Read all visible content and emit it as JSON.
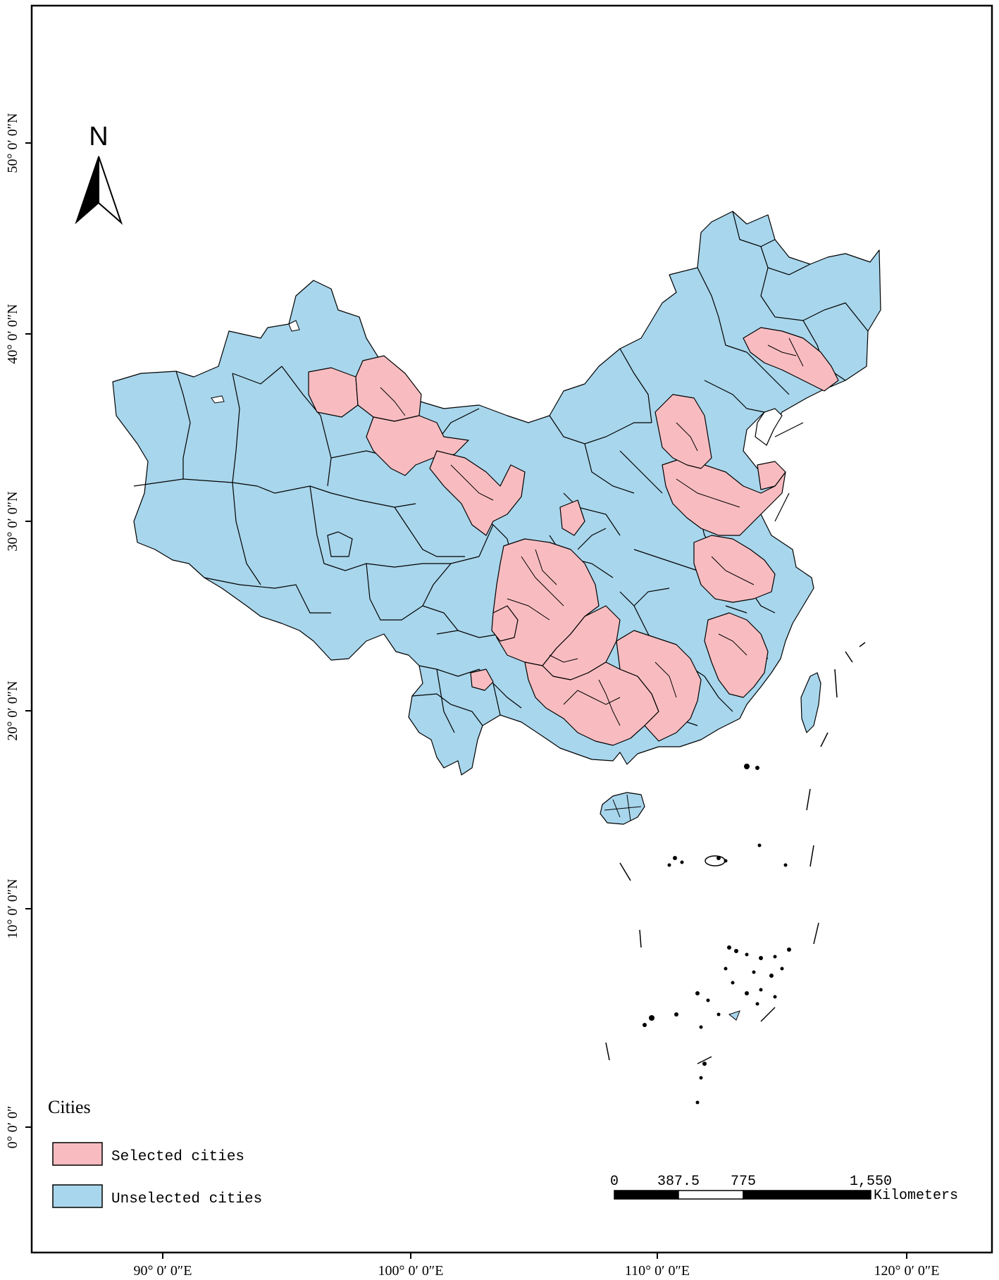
{
  "map": {
    "lat_labels": [
      "0° 0′ 0″",
      "10° 0′ 0″N",
      "20° 0′ 0″N",
      "30° 0′ 0″N",
      "40° 0′ 0″N",
      "50° 0′ 0″N"
    ],
    "lon_labels": [
      "90° 0′ 0″E",
      "100° 0′ 0″E",
      "110° 0′ 0″E",
      "120° 0′ 0″E"
    ]
  },
  "north_arrow": {
    "label": "N"
  },
  "legend": {
    "title": "Cities",
    "items": [
      {
        "label": "Selected cities",
        "color": "#f8bcc0"
      },
      {
        "label": "Unselected cities",
        "color": "#a8d6ec"
      }
    ]
  },
  "scale_bar": {
    "ticks": [
      "0",
      "387.5",
      "775",
      "1,550"
    ],
    "unit": "Kilometers"
  },
  "colors": {
    "selected": "#f8bcc0",
    "unselected": "#a8d6ec"
  }
}
